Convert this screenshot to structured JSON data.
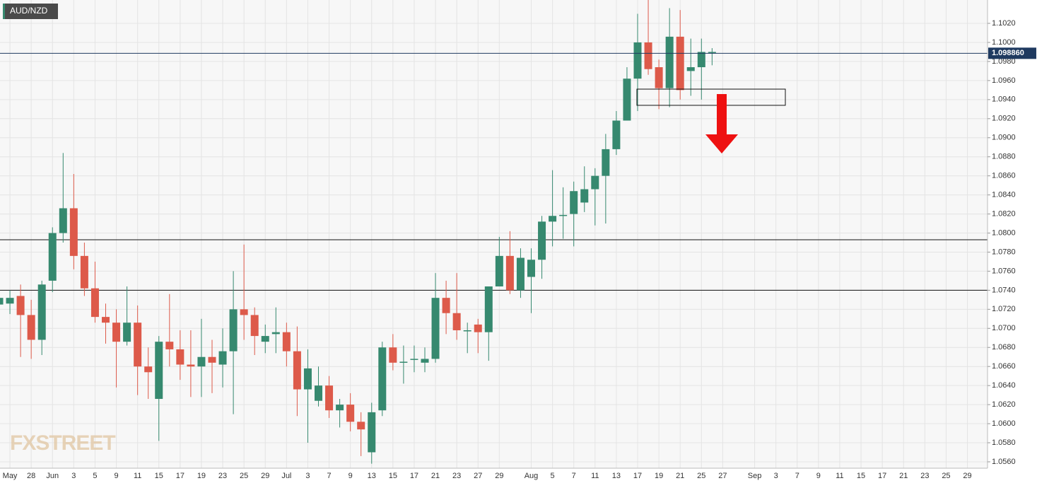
{
  "chart_data": {
    "type": "candlestick",
    "title": "AUD/NZD",
    "watermark": "FXSTREET",
    "categories": [
      null,
      "May",
      null,
      "28",
      null,
      "Jun",
      null,
      "3",
      null,
      "5",
      null,
      "9",
      null,
      "11",
      null,
      "15",
      null,
      "17",
      null,
      "19",
      null,
      "23",
      null,
      "25",
      null,
      "29",
      null,
      "Jul",
      null,
      "3",
      null,
      "7",
      null,
      "9",
      null,
      "13",
      null,
      "15",
      null,
      "17",
      null,
      "21",
      null,
      "23",
      null,
      "27",
      null,
      "29",
      null,
      null,
      "Aug",
      null,
      "5",
      null,
      "7",
      null,
      "11",
      null,
      "13",
      null,
      "17",
      null,
      "19",
      null,
      "21",
      null,
      "25",
      null,
      "27",
      null,
      null,
      "Sep",
      null,
      "3",
      null,
      "7",
      null,
      "9",
      null,
      "11",
      null,
      "15",
      null,
      "17",
      null,
      "21",
      null,
      "23",
      null,
      "25",
      null,
      "29",
      null
    ],
    "open": [
      1.0725,
      1.0726,
      1.0734,
      1.0714,
      1.0688,
      1.075,
      1.08,
      1.0826,
      1.0776,
      1.0742,
      1.0712,
      1.0706,
      1.0686,
      1.0706,
      1.066,
      1.0626,
      1.0686,
      1.0678,
      1.0662,
      1.066,
      1.067,
      1.0662,
      1.0676,
      1.072,
      1.0714,
      1.0686,
      1.0694,
      1.0696,
      1.0676,
      1.0636,
      1.0624,
      1.064,
      1.0614,
      1.062,
      1.0602,
      1.057,
      1.0614,
      1.068,
      1.0665,
      1.0667,
      1.0664,
      1.0668,
      1.0732,
      1.0716,
      1.0698,
      1.0704,
      1.0696,
      1.0744,
      1.0776,
      1.074,
      1.0754,
      1.0772,
      1.0812,
      1.0818,
      1.082,
      1.0832,
      1.0846,
      1.086,
      1.0888,
      1.0918,
      1.0962,
      1.1,
      1.0974,
      1.0952,
      1.1006,
      1.097,
      1.0974,
      1.099,
      null,
      null,
      null,
      null,
      null,
      null,
      null,
      null,
      null,
      null,
      null,
      null,
      null,
      null,
      null,
      null,
      null,
      null,
      null,
      null,
      null,
      null,
      null,
      null,
      null
    ],
    "high": [
      1.0738,
      1.074,
      1.0746,
      1.073,
      1.075,
      1.0806,
      1.0884,
      1.0862,
      1.079,
      1.077,
      1.0726,
      1.072,
      1.0744,
      1.0724,
      1.068,
      1.0692,
      1.0736,
      1.0698,
      1.0698,
      1.071,
      1.0688,
      1.07,
      1.076,
      1.0788,
      1.0722,
      1.0704,
      1.0722,
      1.0706,
      1.0702,
      1.0678,
      1.066,
      1.065,
      1.0626,
      1.0632,
      1.0612,
      1.0622,
      1.0686,
      1.0694,
      1.0682,
      1.0682,
      1.068,
      1.0758,
      1.075,
      1.0758,
      1.0706,
      1.071,
      1.0744,
      1.0796,
      1.0802,
      1.0784,
      1.0784,
      1.0818,
      1.0866,
      1.0848,
      1.0854,
      1.087,
      1.0868,
      1.0904,
      1.0928,
      1.0974,
      1.103,
      1.1048,
      1.0982,
      1.1036,
      1.1034,
      1.1004,
      1.1004,
      1.0994,
      null,
      null,
      null,
      null,
      null,
      null,
      null,
      null,
      null,
      null,
      null,
      null,
      null,
      null,
      null,
      null,
      null,
      null,
      null,
      null,
      null,
      null,
      null,
      null,
      null
    ],
    "low": [
      1.0708,
      1.0715,
      1.067,
      1.0668,
      1.0672,
      1.0738,
      1.079,
      1.0762,
      1.0734,
      1.0706,
      1.0684,
      1.0638,
      1.0682,
      1.063,
      1.0626,
      1.0582,
      1.066,
      1.0646,
      1.0628,
      1.0628,
      1.0632,
      1.0638,
      1.061,
      1.0688,
      1.0672,
      1.0674,
      1.0674,
      1.066,
      1.0608,
      1.058,
      1.0618,
      1.0606,
      1.0596,
      1.0592,
      1.0566,
      1.0558,
      1.0608,
      1.0656,
      1.0642,
      1.0654,
      1.0654,
      1.0664,
      1.0694,
      1.0688,
      1.0674,
      1.0674,
      1.0666,
      1.0744,
      1.0736,
      1.0732,
      1.0716,
      1.0752,
      1.0786,
      1.0794,
      1.0786,
      1.0822,
      1.0808,
      1.081,
      1.0882,
      1.0918,
      1.0928,
      1.0966,
      1.093,
      1.0932,
      1.094,
      1.0944,
      1.094,
      1.0976,
      null,
      null,
      null,
      null,
      null,
      null,
      null,
      null,
      null,
      null,
      null,
      null,
      null,
      null,
      null,
      null,
      null,
      null,
      null,
      null,
      null,
      null,
      null,
      null,
      null
    ],
    "close": [
      1.0732,
      1.0732,
      1.0714,
      1.0688,
      1.0746,
      1.08,
      1.0826,
      1.0776,
      1.0742,
      1.0712,
      1.0706,
      1.0686,
      1.0706,
      1.066,
      1.0654,
      1.0686,
      1.0678,
      1.0662,
      1.066,
      1.067,
      1.0664,
      1.0676,
      1.072,
      1.0714,
      1.0692,
      1.0692,
      1.0696,
      1.0676,
      1.0636,
      1.0658,
      1.064,
      1.0614,
      1.062,
      1.0602,
      1.0594,
      1.0612,
      1.068,
      1.0664,
      1.0665,
      1.0668,
      1.0668,
      1.0732,
      1.0716,
      1.0698,
      1.0698,
      1.0696,
      1.0744,
      1.0776,
      1.074,
      1.0774,
      1.0772,
      1.0812,
      1.0818,
      1.0819,
      1.0844,
      1.0846,
      1.086,
      1.0888,
      1.0918,
      1.0962,
      1.1,
      1.0972,
      1.0952,
      1.1006,
      1.095,
      1.0974,
      1.099,
      1.099,
      null,
      null,
      null,
      null,
      null,
      null,
      null,
      null,
      null,
      null,
      null,
      null,
      null,
      null,
      null,
      null,
      null,
      null,
      null,
      null,
      null,
      null,
      null,
      null,
      null
    ],
    "up_color": "#36896f",
    "down_color": "#dd5a4a",
    "ylim": [
      1.05533,
      1.10445
    ],
    "yticks": [
      {
        "value": 1.056,
        "label": "1.0560"
      },
      {
        "value": 1.058,
        "label": "1.0580"
      },
      {
        "value": 1.06,
        "label": "1.0600"
      },
      {
        "value": 1.062,
        "label": "1.0620"
      },
      {
        "value": 1.064,
        "label": "1.0640"
      },
      {
        "value": 1.066,
        "label": "1.0660"
      },
      {
        "value": 1.068,
        "label": "1.0680"
      },
      {
        "value": 1.07,
        "label": "1.0700"
      },
      {
        "value": 1.072,
        "label": "1.0720"
      },
      {
        "value": 1.074,
        "label": "1.0740"
      },
      {
        "value": 1.076,
        "label": "1.0760"
      },
      {
        "value": 1.078,
        "label": "1.0780"
      },
      {
        "value": 1.08,
        "label": "1.0800"
      },
      {
        "value": 1.082,
        "label": "1.0820"
      },
      {
        "value": 1.084,
        "label": "1.0840"
      },
      {
        "value": 1.086,
        "label": "1.0860"
      },
      {
        "value": 1.088,
        "label": "1.0880"
      },
      {
        "value": 1.09,
        "label": "1.0900"
      },
      {
        "value": 1.092,
        "label": "1.0920"
      },
      {
        "value": 1.094,
        "label": "1.0940"
      },
      {
        "value": 1.096,
        "label": "1.0960"
      },
      {
        "value": 1.098,
        "label": "1.0980"
      },
      {
        "value": 1.1,
        "label": "1.1000"
      },
      {
        "value": 1.102,
        "label": "1.1020"
      }
    ],
    "grid": true,
    "last_price": {
      "value": 1.09886,
      "label": "1.098860"
    },
    "levels": [
      1.0793,
      1.074
    ],
    "zone": [
      1.0934,
      1.0951
    ]
  }
}
